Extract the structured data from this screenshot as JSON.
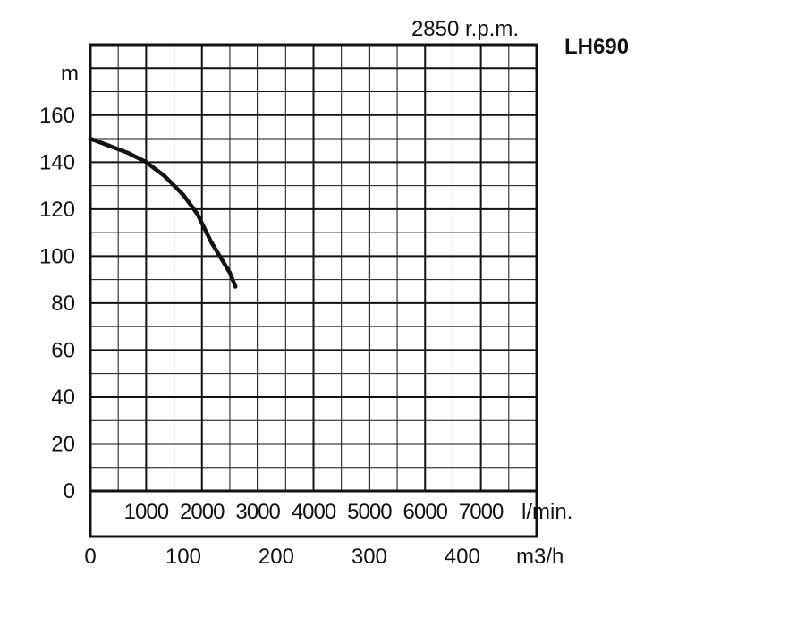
{
  "chart_data": {
    "type": "line",
    "title": "LH690",
    "subtitle": "2850 r.p.m.",
    "ylabel": "m",
    "ylim": [
      0,
      190
    ],
    "yticks": [
      "0",
      "20",
      "40",
      "60",
      "80",
      "100",
      "120",
      "140",
      "160"
    ],
    "x_primary": {
      "unit": "m3/h",
      "range": [
        0,
        480
      ],
      "ticks": [
        "0",
        "100",
        "200",
        "300",
        "400"
      ]
    },
    "x_secondary": {
      "unit": "l/min.",
      "ticks": [
        "1000",
        "2000",
        "3000",
        "4000",
        "5000",
        "6000",
        "7000"
      ]
    },
    "grid": true,
    "series": [
      {
        "x": [
          0,
          20,
          40,
          60,
          80,
          100,
          115,
          130,
          150,
          156
        ],
        "y": [
          150,
          147,
          144,
          140,
          134,
          126,
          118,
          106,
          93,
          87
        ]
      }
    ]
  }
}
